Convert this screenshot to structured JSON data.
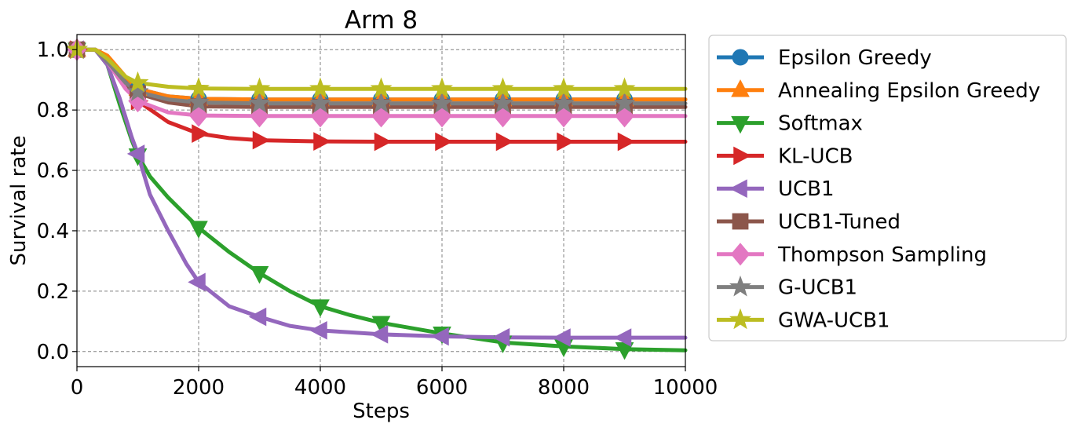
{
  "chart_data": {
    "type": "line",
    "title": "Arm 8",
    "xlabel": "Steps",
    "ylabel": "Survival rate",
    "xlim": [
      0,
      10000
    ],
    "ylim": [
      -0.05,
      1.05
    ],
    "xticks": [
      0,
      2000,
      4000,
      6000,
      8000,
      10000
    ],
    "yticks": [
      0.0,
      0.2,
      0.4,
      0.6,
      0.8,
      1.0
    ],
    "xtick_labels": [
      "0",
      "2000",
      "4000",
      "6000",
      "8000",
      "10000"
    ],
    "ytick_labels": [
      "0.0",
      "0.2",
      "0.4",
      "0.6",
      "0.8",
      "1.0"
    ],
    "grid": true,
    "legend_position": "outside-right",
    "marker_steps": [
      0,
      1000,
      2000,
      3000,
      4000,
      5000,
      6000,
      7000,
      8000,
      9000
    ],
    "series": [
      {
        "name": "Epsilon Greedy",
        "color": "#1f77b4",
        "marker": "circle",
        "x": [
          0,
          300,
          500,
          800,
          1000,
          1500,
          2000,
          3000,
          10000
        ],
        "y": [
          1.0,
          1.0,
          0.97,
          0.9,
          0.87,
          0.845,
          0.837,
          0.835,
          0.835
        ]
      },
      {
        "name": "Annealing Epsilon Greedy",
        "color": "#ff7f0e",
        "marker": "triangle-up",
        "x": [
          0,
          300,
          500,
          800,
          1000,
          1500,
          2000,
          3000,
          10000
        ],
        "y": [
          1.0,
          1.0,
          0.98,
          0.91,
          0.87,
          0.845,
          0.837,
          0.835,
          0.835
        ]
      },
      {
        "name": "Softmax",
        "color": "#2ca02c",
        "marker": "triangle-down",
        "x": [
          0,
          300,
          500,
          700,
          900,
          1000,
          1200,
          1500,
          2000,
          2500,
          3000,
          3500,
          4000,
          4500,
          5000,
          6000,
          7000,
          8000,
          9000,
          10000
        ],
        "y": [
          1.0,
          1.0,
          0.95,
          0.82,
          0.7,
          0.65,
          0.58,
          0.51,
          0.41,
          0.33,
          0.26,
          0.2,
          0.15,
          0.12,
          0.095,
          0.06,
          0.03,
          0.017,
          0.008,
          0.004
        ]
      },
      {
        "name": "KL-UCB",
        "color": "#d62728",
        "marker": "triangle-right",
        "x": [
          0,
          300,
          500,
          800,
          1000,
          1500,
          2000,
          2500,
          3000,
          4000,
          5000,
          10000
        ],
        "y": [
          1.0,
          1.0,
          0.96,
          0.88,
          0.83,
          0.76,
          0.722,
          0.707,
          0.7,
          0.696,
          0.695,
          0.695
        ]
      },
      {
        "name": "UCB1",
        "color": "#9467bd",
        "marker": "triangle-left",
        "x": [
          0,
          300,
          500,
          700,
          900,
          1000,
          1200,
          1500,
          1800,
          2000,
          2500,
          3000,
          3500,
          4000,
          5000,
          6000,
          7000,
          8000,
          10000
        ],
        "y": [
          1.0,
          1.0,
          0.95,
          0.84,
          0.71,
          0.655,
          0.52,
          0.4,
          0.29,
          0.23,
          0.15,
          0.115,
          0.085,
          0.07,
          0.057,
          0.05,
          0.047,
          0.046,
          0.046
        ]
      },
      {
        "name": "UCB1-Tuned",
        "color": "#8c564b",
        "marker": "square",
        "x": [
          0,
          300,
          500,
          800,
          1000,
          1500,
          2000,
          3000,
          10000
        ],
        "y": [
          1.0,
          1.0,
          0.96,
          0.88,
          0.855,
          0.825,
          0.812,
          0.81,
          0.81
        ]
      },
      {
        "name": "Thompson Sampling",
        "color": "#e377c2",
        "marker": "diamond",
        "x": [
          0,
          300,
          500,
          800,
          1000,
          1500,
          2000,
          3000,
          10000
        ],
        "y": [
          1.0,
          1.0,
          0.96,
          0.87,
          0.83,
          0.792,
          0.782,
          0.78,
          0.78
        ]
      },
      {
        "name": "G-UCB1",
        "color": "#7f7f7f",
        "marker": "star",
        "x": [
          0,
          300,
          500,
          800,
          1000,
          1500,
          2000,
          3000,
          10000
        ],
        "y": [
          1.0,
          1.0,
          0.96,
          0.89,
          0.86,
          0.835,
          0.825,
          0.822,
          0.822
        ]
      },
      {
        "name": "GWA-UCB1",
        "color": "#bcbd22",
        "marker": "star",
        "x": [
          0,
          300,
          500,
          800,
          1000,
          1500,
          2000,
          3000,
          10000
        ],
        "y": [
          1.0,
          1.0,
          0.97,
          0.91,
          0.89,
          0.877,
          0.871,
          0.87,
          0.87
        ]
      }
    ]
  }
}
